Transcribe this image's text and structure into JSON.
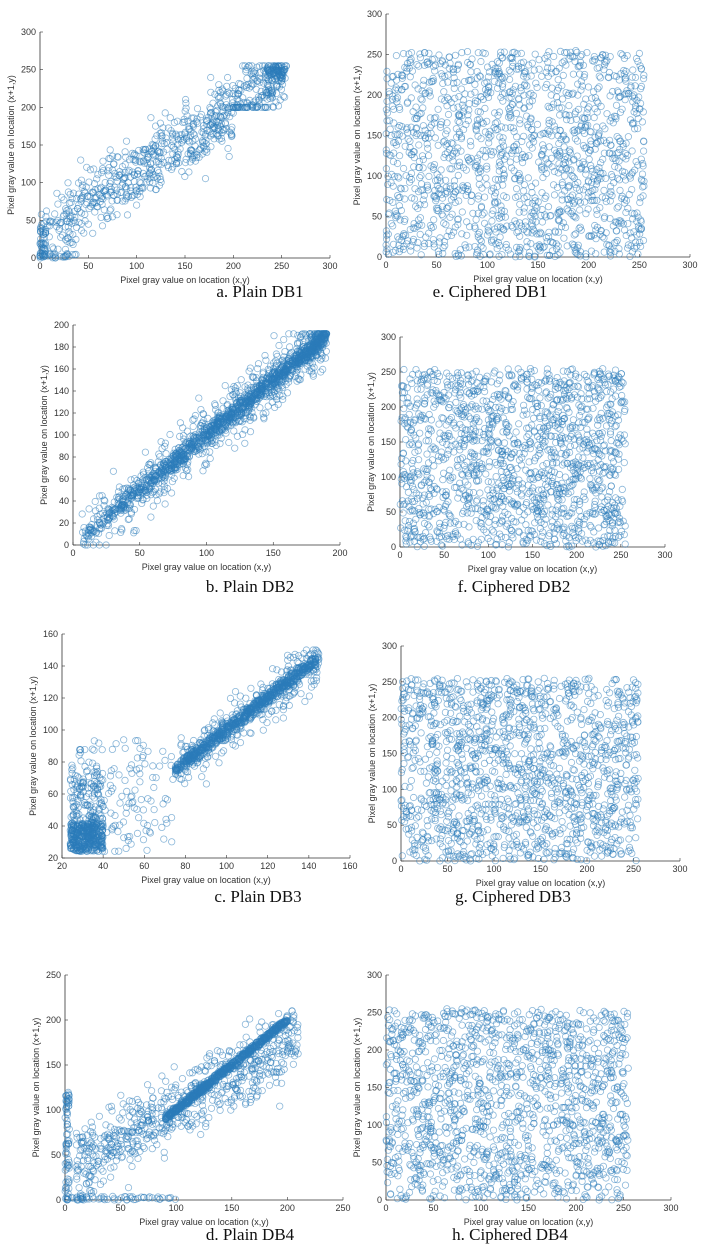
{
  "chart_data": [
    {
      "id": "a",
      "type": "scatter",
      "caption": "a.    Plain DB1",
      "xlabel": "Pixel gray value on location (x,y)",
      "ylabel": "Pixel gray value on location (x+1,y)",
      "xlim": [
        0,
        300
      ],
      "ylim": [
        0,
        300
      ],
      "xticks": [
        0,
        50,
        100,
        150,
        200,
        250,
        300
      ],
      "yticks": [
        0,
        50,
        100,
        150,
        200,
        250,
        300
      ],
      "series": [
        {
          "color": "#2b7bb9",
          "n": 900,
          "pattern": "band-diagonal-saturated",
          "sample": [
            [
              10,
              5
            ],
            [
              40,
              60
            ],
            [
              80,
              120
            ],
            [
              120,
              160
            ],
            [
              160,
              200
            ],
            [
              200,
              230
            ],
            [
              240,
              250
            ],
            [
              250,
              250
            ],
            [
              0,
              0
            ],
            [
              255,
              255
            ]
          ]
        }
      ]
    },
    {
      "id": "e",
      "type": "scatter",
      "caption": "e.  Ciphered DB1",
      "xlabel": "Pixel gray value on location (x,y)",
      "ylabel": "Pixel gray value on location (x+1,y)",
      "xlim": [
        0,
        300
      ],
      "ylim": [
        0,
        300
      ],
      "xticks": [
        0,
        50,
        100,
        150,
        200,
        250,
        300
      ],
      "yticks": [
        0,
        50,
        100,
        150,
        200,
        250,
        300
      ],
      "series": [
        {
          "color": "#2b7bb9",
          "n": 1500,
          "pattern": "uniform",
          "xrange": [
            0,
            255
          ],
          "yrange": [
            0,
            255
          ]
        }
      ]
    },
    {
      "id": "b",
      "type": "scatter",
      "caption": "b.    Plain DB2",
      "xlabel": "Pixel gray value on location (x,y)",
      "ylabel": "Pixel gray value on location (x+1,y)",
      "xlim": [
        0,
        200
      ],
      "ylim": [
        0,
        200
      ],
      "xticks": [
        0,
        50,
        100,
        150,
        200
      ],
      "yticks": [
        0,
        20,
        40,
        60,
        80,
        100,
        120,
        140,
        160,
        180,
        200
      ],
      "series": [
        {
          "color": "#2b7bb9",
          "n": 1700,
          "pattern": "tight-diagonal",
          "sample": [
            [
              5,
              10
            ],
            [
              30,
              35
            ],
            [
              60,
              65
            ],
            [
              100,
              105
            ],
            [
              140,
              145
            ],
            [
              170,
              170
            ],
            [
              185,
              188
            ]
          ]
        }
      ]
    },
    {
      "id": "f",
      "type": "scatter",
      "caption": "f.  Ciphered DB2",
      "xlabel": "Pixel gray value on location (x,y)",
      "ylabel": "Pixel gray value on location (x+1,y)",
      "xlim": [
        0,
        300
      ],
      "ylim": [
        0,
        300
      ],
      "xticks": [
        0,
        50,
        100,
        150,
        200,
        250,
        300
      ],
      "yticks": [
        0,
        50,
        100,
        150,
        200,
        250,
        300
      ],
      "series": [
        {
          "color": "#2b7bb9",
          "n": 1500,
          "pattern": "uniform",
          "xrange": [
            0,
            255
          ],
          "yrange": [
            0,
            255
          ]
        }
      ]
    },
    {
      "id": "c",
      "type": "scatter",
      "caption": "c.    Plain DB3",
      "xlabel": "Pixel gray value on location (x,y)",
      "ylabel": "Pixel gray value on location (x+1,y)",
      "xlim": [
        20,
        160
      ],
      "ylim": [
        20,
        160
      ],
      "xticks": [
        20,
        40,
        60,
        80,
        100,
        120,
        140,
        160
      ],
      "yticks": [
        20,
        40,
        60,
        80,
        100,
        120,
        140,
        160
      ],
      "series": [
        {
          "color": "#2b7bb9",
          "n": 1700,
          "pattern": "two-cluster-diagonal",
          "sample": [
            [
              25,
              28
            ],
            [
              35,
              40
            ],
            [
              80,
              85
            ],
            [
              100,
              100
            ],
            [
              120,
              122
            ],
            [
              140,
              142
            ]
          ]
        }
      ]
    },
    {
      "id": "g",
      "type": "scatter",
      "caption": "g.  Ciphered DB3",
      "xlabel": "Pixel gray value on location (x,y)",
      "ylabel": "Pixel gray value on location (x+1,y)",
      "xlim": [
        0,
        300
      ],
      "ylim": [
        0,
        300
      ],
      "xticks": [
        0,
        50,
        100,
        150,
        200,
        250,
        300
      ],
      "yticks": [
        0,
        50,
        100,
        150,
        200,
        250,
        300
      ],
      "series": [
        {
          "color": "#2b7bb9",
          "n": 1500,
          "pattern": "uniform",
          "xrange": [
            0,
            255
          ],
          "yrange": [
            0,
            255
          ]
        }
      ]
    },
    {
      "id": "d",
      "type": "scatter",
      "caption": "d.    Plain DB4",
      "xlabel": "Pixel gray value on location (x,y)",
      "ylabel": "Pixel gray value on location (x+1,y)",
      "xlim": [
        0,
        250
      ],
      "ylim": [
        0,
        250
      ],
      "xticks": [
        0,
        50,
        100,
        150,
        200,
        250
      ],
      "yticks": [
        0,
        50,
        100,
        150,
        200,
        250
      ],
      "series": [
        {
          "color": "#2b7bb9",
          "n": 1500,
          "pattern": "diagonal-with-axis-bands",
          "sample": [
            [
              0,
              0
            ],
            [
              0,
              50
            ],
            [
              90,
              95
            ],
            [
              130,
              135
            ],
            [
              170,
              172
            ],
            [
              200,
              205
            ]
          ]
        }
      ]
    },
    {
      "id": "h",
      "type": "scatter",
      "caption": "h.  Ciphered DB4",
      "xlabel": "Pixel gray value on location (x,y)",
      "ylabel": "Pixel gray value on location (x+1,y)",
      "xlim": [
        0,
        300
      ],
      "ylim": [
        0,
        300
      ],
      "xticks": [
        0,
        50,
        100,
        150,
        200,
        250,
        300
      ],
      "yticks": [
        0,
        50,
        100,
        150,
        200,
        250,
        300
      ],
      "series": [
        {
          "color": "#2b7bb9",
          "n": 1500,
          "pattern": "uniform",
          "xrange": [
            0,
            255
          ],
          "yrange": [
            0,
            255
          ]
        }
      ]
    }
  ]
}
